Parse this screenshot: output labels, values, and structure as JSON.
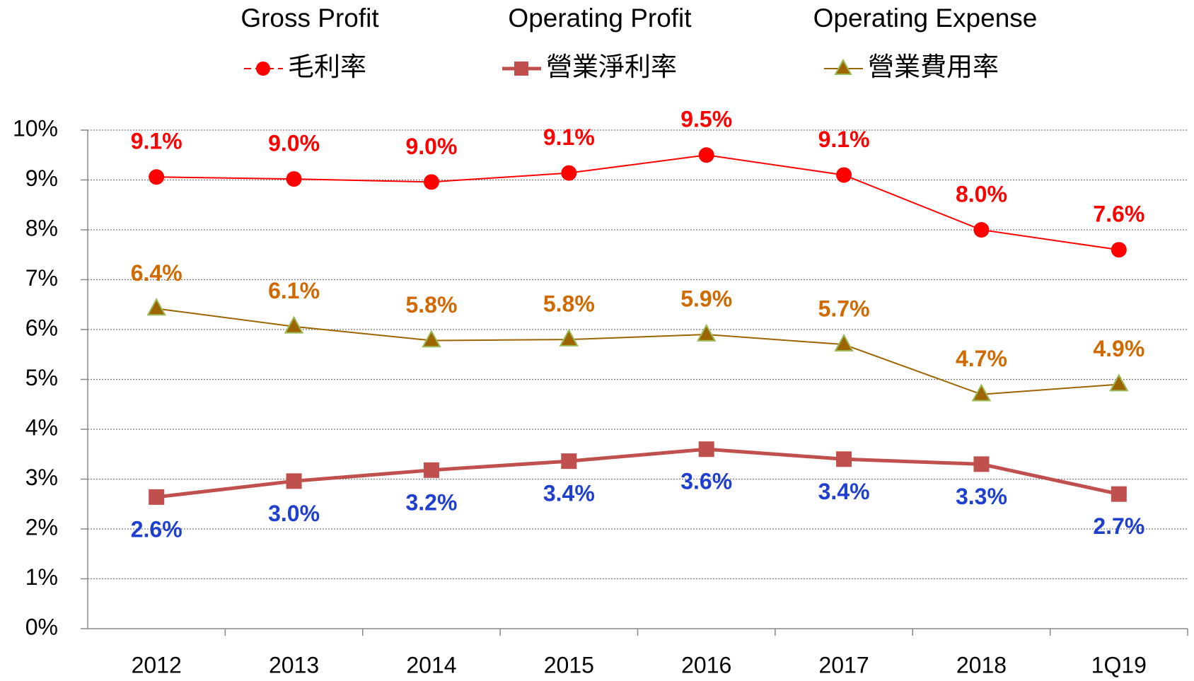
{
  "chart_data": {
    "type": "line",
    "series_headings": [
      "Gross Profit",
      "Operating  Profit",
      "Operating Expense"
    ],
    "categories": [
      "2012",
      "2013",
      "2014",
      "2015",
      "2016",
      "2017",
      "2018",
      "1Q19"
    ],
    "series": [
      {
        "name": "毛利率",
        "color": "#ff0000",
        "marker": "circle",
        "label_color": "#ff0000",
        "label_position": "above",
        "values": [
          9.06,
          9.02,
          8.96,
          9.14,
          9.5,
          9.1,
          8.0,
          7.6
        ],
        "value_labels": [
          "9.1%",
          "9.0%",
          "9.0%",
          "9.1%",
          "9.5%",
          "9.1%",
          "8.0%",
          "7.6%"
        ]
      },
      {
        "name": "營業淨利率",
        "color": "#c0504d",
        "marker": "square",
        "label_color": "#1f3fcf",
        "label_position": "below",
        "values": [
          2.64,
          2.96,
          3.18,
          3.36,
          3.6,
          3.4,
          3.3,
          2.7
        ],
        "value_labels": [
          "2.6%",
          "3.0%",
          "3.2%",
          "3.4%",
          "3.6%",
          "3.4%",
          "3.3%",
          "2.7%"
        ]
      },
      {
        "name": "營業費用率",
        "color": "#9c6500",
        "marker": "triangle",
        "label_color": "#d06a00",
        "label_position": "above",
        "values": [
          6.42,
          6.06,
          5.78,
          5.8,
          5.9,
          5.7,
          4.7,
          4.9
        ],
        "value_labels": [
          "6.4%",
          "6.1%",
          "5.8%",
          "5.8%",
          "5.9%",
          "5.7%",
          "4.7%",
          "4.9%"
        ]
      }
    ],
    "ylim": [
      0,
      10
    ],
    "yticks": [
      {
        "value": 0,
        "label": "0%"
      },
      {
        "value": 1,
        "label": "1%"
      },
      {
        "value": 2,
        "label": "2%"
      },
      {
        "value": 3,
        "label": "3%"
      },
      {
        "value": 4,
        "label": "4%"
      },
      {
        "value": 5,
        "label": "5%"
      },
      {
        "value": 6,
        "label": "6%"
      },
      {
        "value": 7,
        "label": "7%"
      },
      {
        "value": 8,
        "label": "8%"
      },
      {
        "value": 9,
        "label": "9%"
      },
      {
        "value": 10,
        "label": "10%"
      }
    ],
    "grid": true
  }
}
